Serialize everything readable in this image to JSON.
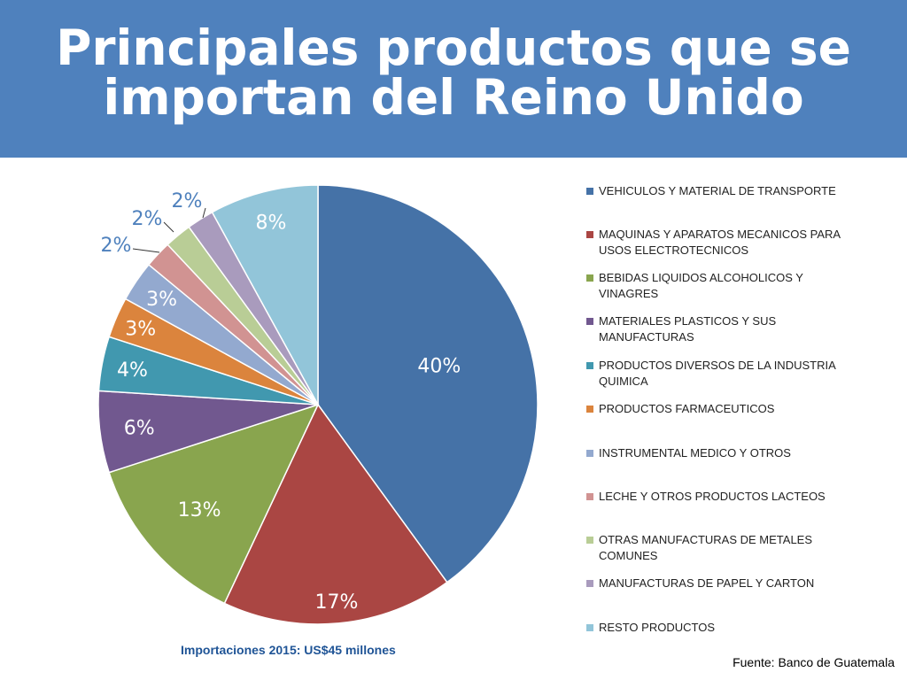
{
  "slide": {
    "title_line1": "Principales productos que se",
    "title_line2": "importan del Reino Unido",
    "total_note": "Importaciones 2015: US$45 millones",
    "source": "Fuente: Banco de Guatemala"
  },
  "chart_data": {
    "type": "pie",
    "title": "",
    "legend_position": "right",
    "slices": [
      {
        "label": "VEHICULOS Y MATERIAL DE TRANSPORTE",
        "value": 40,
        "display": "40%",
        "color": "#4572a7"
      },
      {
        "label": "MAQUINAS Y APARATOS MECANICOS PARA USOS ELECTROTECNICOS",
        "value": 17,
        "display": "17%",
        "color": "#aa4643"
      },
      {
        "label": "BEBIDAS LIQUIDOS ALCOHOLICOS Y VINAGRES",
        "value": 13,
        "display": "13%",
        "color": "#89a54e"
      },
      {
        "label": "MATERIALES PLASTICOS Y SUS MANUFACTURAS",
        "value": 6,
        "display": "6%",
        "color": "#71588f"
      },
      {
        "label": "PRODUCTOS DIVERSOS DE LA INDUSTRIA QUIMICA",
        "value": 4,
        "display": "4%",
        "color": "#4198af"
      },
      {
        "label": "PRODUCTOS FARMACEUTICOS",
        "value": 3,
        "display": "3%",
        "color": "#db843d"
      },
      {
        "label": "INSTRUMENTAL MEDICO Y OTROS",
        "value": 3,
        "display": "3%",
        "color": "#93a9cf"
      },
      {
        "label": "LECHE Y OTROS PRODUCTOS LACTEOS",
        "value": 2,
        "display": "2%",
        "color": "#d19392"
      },
      {
        "label": "OTRAS MANUFACTURAS DE METALES COMUNES",
        "value": 2,
        "display": "2%",
        "color": "#b9cd96"
      },
      {
        "label": "MANUFACTURAS DE PAPEL Y CARTON",
        "value": 2,
        "display": "2%",
        "color": "#a99bbd"
      },
      {
        "label": "RESTO PRODUCTOS",
        "value": 8,
        "display": "8%",
        "color": "#92c5d9"
      }
    ]
  }
}
